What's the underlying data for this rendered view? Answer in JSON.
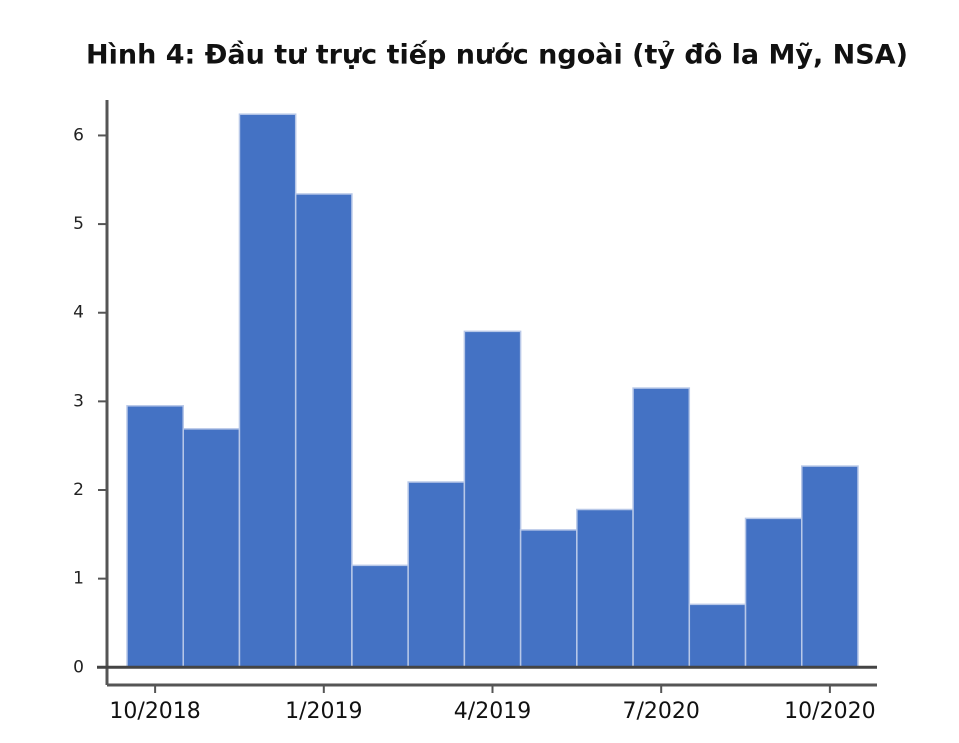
{
  "chart_data": {
    "type": "bar",
    "title": "Hình 4: Đầu tư trực tiếp nước ngoài (tỷ đô la Mỹ, NSA)",
    "categories": [
      "10/2018",
      null,
      null,
      "1/2019",
      null,
      null,
      "4/2019",
      null,
      null,
      "7/2020",
      null,
      null,
      "10/2020"
    ],
    "values": [
      2.95,
      2.69,
      6.24,
      5.34,
      1.15,
      2.09,
      3.79,
      1.55,
      1.78,
      3.15,
      0.71,
      1.68,
      2.27
    ],
    "color": "#4472c4",
    "ylim": [
      -0.2,
      6.4
    ],
    "yticks": [
      0,
      1,
      2,
      3,
      4,
      5,
      6
    ],
    "grid": false
  }
}
